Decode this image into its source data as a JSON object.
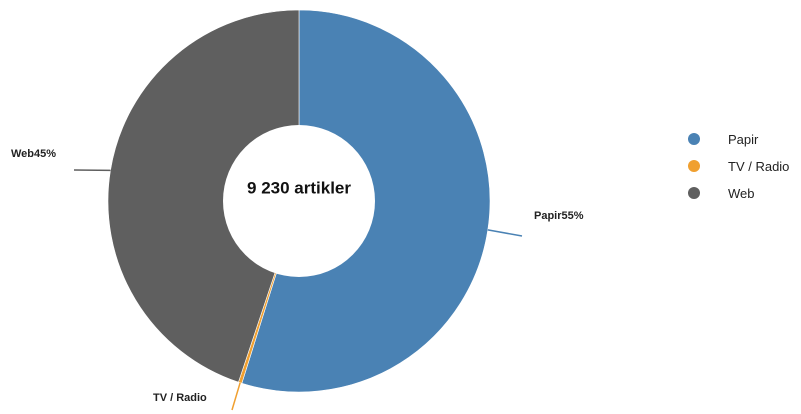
{
  "chart_data": {
    "type": "pie",
    "donut": true,
    "center_label": "9 230 artikler",
    "slices": [
      {
        "name": "Papir",
        "value": 55,
        "label": "Papir55%",
        "color": "#4a82b4"
      },
      {
        "name": "TV / Radio",
        "value": 0.3,
        "label": "TV / Radio",
        "color": "#f0a030"
      },
      {
        "name": "Web",
        "value": 45,
        "label": "Web45%",
        "color": "#5f5f5f"
      }
    ],
    "legend": {
      "placement": "right",
      "items": [
        "Papir",
        "TV / Radio",
        "Web"
      ]
    }
  }
}
